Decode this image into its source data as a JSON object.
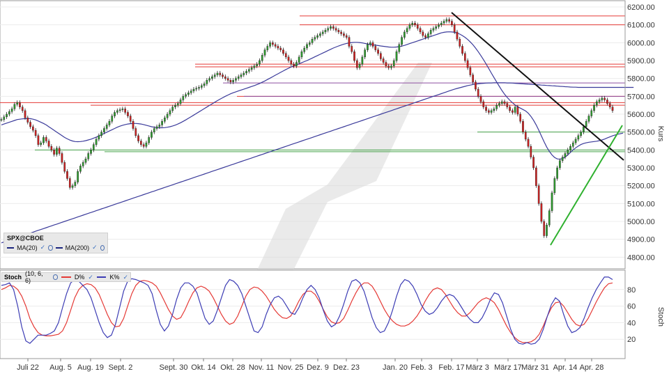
{
  "chart_data": [
    {
      "type": "candlestick",
      "symbol": "SPX@CBOE",
      "ylabel": "Kurs",
      "ylim": [
        4700,
        6200
      ],
      "y_ticks": [
        "6200.00",
        "6100.00",
        "6000.00",
        "5900.00",
        "5800.00",
        "5700.00",
        "5600.00",
        "5500.00",
        "5400.00",
        "5300.00",
        "5200.00",
        "5100.00",
        "5000.00",
        "4900.00",
        "4800.00"
      ],
      "x_labels": [
        "Juli 22",
        "Aug. 5",
        "Aug. 19",
        "Sept. 2",
        "Sept. 30",
        "Okt. 14",
        "Okt. 28",
        "Nov. 11",
        "Nov. 25",
        "Dez. 9",
        "Dez. 23",
        "Jan. 20",
        "Feb. 3",
        "Feb. 17",
        "März 3",
        "März 17",
        "März 31",
        "Apr. 14",
        "Apr. 28"
      ],
      "legend": [
        {
          "name": "MA(20)",
          "color": "#1a237e"
        },
        {
          "name": "MA(200)",
          "color": "#1a237e"
        }
      ],
      "colors": {
        "up": "#2e9e2e",
        "down": "#d12020",
        "ma": "#3a3a9a",
        "resistance": "#e53935",
        "support": "#43a047",
        "trend_down": "#111111",
        "trend_up": "#2fb12f",
        "purple": "#8e4fa0"
      },
      "grid": true,
      "horizontal_levels": {
        "red": [
          6150,
          6100,
          5880,
          5865,
          5700,
          5665,
          5650
        ],
        "purple": [
          5775,
          5700
        ],
        "green": [
          5500,
          5400,
          5390
        ]
      },
      "closes": [
        5570,
        5585,
        5600,
        5615,
        5630,
        5655,
        5665,
        5640,
        5620,
        5580,
        5555,
        5530,
        5510,
        5480,
        5430,
        5440,
        5470,
        5450,
        5420,
        5400,
        5375,
        5410,
        5380,
        5330,
        5280,
        5240,
        5190,
        5200,
        5220,
        5280,
        5310,
        5330,
        5350,
        5380,
        5400,
        5430,
        5460,
        5480,
        5500,
        5520,
        5540,
        5560,
        5590,
        5610,
        5620,
        5625,
        5630,
        5610,
        5590,
        5560,
        5520,
        5480,
        5450,
        5430,
        5420,
        5440,
        5470,
        5500,
        5520,
        5530,
        5540,
        5560,
        5580,
        5600,
        5620,
        5640,
        5650,
        5660,
        5680,
        5700,
        5710,
        5720,
        5730,
        5740,
        5745,
        5750,
        5760,
        5770,
        5790,
        5800,
        5810,
        5820,
        5830,
        5820,
        5810,
        5800,
        5790,
        5780,
        5790,
        5800,
        5810,
        5820,
        5830,
        5840,
        5850,
        5860,
        5870,
        5880,
        5900,
        5930,
        5960,
        5980,
        6000,
        5990,
        5980,
        5970,
        5960,
        5940,
        5920,
        5900,
        5880,
        5870,
        5890,
        5920,
        5950,
        5970,
        5990,
        6000,
        6020,
        6030,
        6040,
        6050,
        6060,
        6070,
        6080,
        6090,
        6080,
        6070,
        6060,
        6050,
        6040,
        6030,
        5980,
        5950,
        5900,
        5860,
        5880,
        5920,
        5960,
        5990,
        6000,
        5980,
        5960,
        5940,
        5910,
        5890,
        5870,
        5860,
        5870,
        5900,
        5950,
        5990,
        6030,
        6060,
        6080,
        6100,
        6110,
        6100,
        6080,
        6060,
        6040,
        6030,
        6050,
        6070,
        6080,
        6090,
        6100,
        6110,
        6120,
        6130,
        6120,
        6100,
        6060,
        6020,
        5980,
        5940,
        5900,
        5860,
        5820,
        5780,
        5740,
        5700,
        5670,
        5640,
        5620,
        5610,
        5620,
        5630,
        5650,
        5660,
        5670,
        5660,
        5640,
        5620,
        5610,
        5640,
        5600,
        5560,
        5500,
        5460,
        5420,
        5360,
        5300,
        5200,
        5100,
        5000,
        4920,
        4980,
        5060,
        5160,
        5240,
        5300,
        5340,
        5360,
        5380,
        5400,
        5420,
        5440,
        5460,
        5480,
        5500,
        5530,
        5560,
        5590,
        5620,
        5650,
        5670,
        5680,
        5690,
        5680,
        5660,
        5640,
        5620
      ],
      "ma20": [
        5540,
        5545,
        5550,
        5555,
        5560,
        5565,
        5570,
        5572,
        5574,
        5575,
        5576,
        5575,
        5572,
        5568,
        5562,
        5555,
        5548,
        5540,
        5530,
        5520,
        5510,
        5500,
        5490,
        5480,
        5470,
        5462,
        5455,
        5450,
        5447,
        5446,
        5447,
        5449,
        5452,
        5456,
        5460,
        5466,
        5472,
        5478,
        5485,
        5492,
        5499,
        5506,
        5513,
        5520,
        5527,
        5533,
        5538,
        5542,
        5545,
        5547,
        5548,
        5548,
        5547,
        5545,
        5542,
        5538,
        5534,
        5530,
        5527,
        5525,
        5524,
        5524,
        5525,
        5527,
        5530,
        5534,
        5539,
        5545,
        5552,
        5560,
        5568,
        5577,
        5586,
        5595,
        5604,
        5613,
        5622,
        5631,
        5640,
        5649,
        5658,
        5667,
        5676,
        5684,
        5692,
        5700,
        5707,
        5714,
        5720,
        5725,
        5730,
        5735,
        5740,
        5745,
        5750,
        5755,
        5760,
        5766,
        5772,
        5779,
        5786,
        5794,
        5802,
        5810,
        5818,
        5826,
        5834,
        5842,
        5850,
        5857,
        5864,
        5870,
        5876,
        5882,
        5888,
        5894,
        5900,
        5907,
        5914,
        5921,
        5928,
        5935,
        5942,
        5949,
        5956,
        5963,
        5970,
        5976,
        5982,
        5987,
        5992,
        5996,
        5999,
        6001,
        6002,
        6002,
        6001,
        5999,
        5996,
        5993,
        5990,
        5988,
        5986,
        5984,
        5982,
        5980,
        5978,
        5976,
        5975,
        5975,
        5976,
        5978,
        5981,
        5985,
        5990,
        5995,
        6000,
        6005,
        6010,
        6015,
        6020,
        6025,
        6030,
        6035,
        6040,
        6045,
        6050,
        6055,
        6058,
        6060,
        6061,
        6060,
        6058,
        6054,
        6048,
        6040,
        6030,
        6018,
        6004,
        5988,
        5970,
        5950,
        5928,
        5905,
        5881,
        5856,
        5830,
        5805,
        5780,
        5756,
        5733,
        5712,
        5694,
        5678,
        5664,
        5652,
        5642,
        5634,
        5626,
        5618,
        5606,
        5588,
        5566,
        5540,
        5510,
        5478,
        5446,
        5416,
        5392,
        5372,
        5358,
        5350,
        5348,
        5352,
        5360,
        5372,
        5386,
        5400,
        5412,
        5422,
        5430,
        5436,
        5440,
        5443,
        5445,
        5447,
        5449,
        5452,
        5456,
        5461,
        5467,
        5473,
        5479,
        5484,
        5488,
        5491,
        5494
      ],
      "ma200": [
        4880,
        4885,
        4890,
        4895,
        4900,
        4905,
        4910,
        4915,
        4920,
        4925,
        4930,
        4935,
        4940,
        4945,
        4950,
        4955,
        4960,
        4965,
        4970,
        4975,
        4980,
        4985,
        4990,
        4995,
        5000,
        5005,
        5010,
        5015,
        5020,
        5025,
        5030,
        5035,
        5040,
        5045,
        5050,
        5055,
        5060,
        5065,
        5070,
        5075,
        5080,
        5085,
        5090,
        5095,
        5100,
        5105,
        5110,
        5115,
        5120,
        5125,
        5130,
        5135,
        5140,
        5145,
        5150,
        5155,
        5160,
        5165,
        5170,
        5175,
        5180,
        5185,
        5190,
        5195,
        5200,
        5205,
        5210,
        5215,
        5220,
        5225,
        5230,
        5235,
        5240,
        5245,
        5250,
        5255,
        5260,
        5265,
        5270,
        5275,
        5280,
        5285,
        5290,
        5295,
        5300,
        5305,
        5310,
        5315,
        5320,
        5325,
        5330,
        5335,
        5340,
        5345,
        5350,
        5355,
        5360,
        5365,
        5370,
        5375,
        5380,
        5385,
        5390,
        5395,
        5400,
        5405,
        5410,
        5415,
        5420,
        5425,
        5430,
        5435,
        5440,
        5445,
        5450,
        5455,
        5460,
        5465,
        5470,
        5475,
        5480,
        5485,
        5490,
        5495,
        5500,
        5505,
        5510,
        5515,
        5520,
        5525,
        5530,
        5535,
        5540,
        5545,
        5550,
        5555,
        5560,
        5565,
        5570,
        5575,
        5580,
        5585,
        5590,
        5595,
        5600,
        5605,
        5610,
        5615,
        5620,
        5625,
        5630,
        5635,
        5640,
        5645,
        5650,
        5655,
        5660,
        5665,
        5670,
        5675,
        5680,
        5685,
        5690,
        5695,
        5700,
        5705,
        5710,
        5715,
        5720,
        5725,
        5730,
        5735,
        5740,
        5744,
        5748,
        5752,
        5756,
        5760,
        5763,
        5766,
        5768,
        5770,
        5772,
        5773,
        5774,
        5775,
        5775,
        5776,
        5776,
        5776,
        5776,
        5776,
        5775,
        5775,
        5774,
        5773,
        5772,
        5771,
        5770,
        5769,
        5768,
        5767,
        5766,
        5765,
        5764,
        5763,
        5762,
        5761,
        5760,
        5759,
        5758,
        5757,
        5756,
        5755,
        5754,
        5753,
        5752,
        5751,
        5751,
        5750,
        5750,
        5750,
        5750,
        5750,
        5750,
        5750,
        5750,
        5750,
        5750,
        5750,
        5750,
        5750,
        5750,
        5750,
        5750,
        5750,
        5750,
        5750,
        5750,
        5750,
        5750
      ]
    },
    {
      "type": "line",
      "indicator": "Stoch",
      "params": "(10, 6, 6)",
      "ylabel": "Stoch",
      "ylim": [
        0,
        100
      ],
      "y_ticks": [
        "80",
        "60",
        "40",
        "20"
      ],
      "series": [
        {
          "name": "D%",
          "color": "#e53935",
          "values": [
            80,
            82,
            85,
            84,
            80,
            72,
            60,
            45,
            35,
            28,
            25,
            24,
            24,
            25,
            26,
            30,
            40,
            55,
            70,
            80,
            85,
            87,
            86,
            82,
            74,
            62,
            50,
            40,
            35,
            36,
            45,
            60,
            75,
            85,
            90,
            91,
            90,
            88,
            84,
            76,
            66,
            56,
            48,
            44,
            46,
            55,
            66,
            76,
            82,
            84,
            82,
            78,
            70,
            60,
            50,
            42,
            38,
            40,
            48,
            60,
            72,
            80,
            83,
            82,
            78,
            72,
            64,
            56,
            50,
            46,
            45,
            48,
            56,
            66,
            74,
            78,
            78,
            74,
            66,
            56,
            47,
            41,
            39,
            40,
            45,
            55,
            66,
            76,
            84,
            88,
            88,
            84,
            76,
            66,
            56,
            48,
            42,
            38,
            36,
            36,
            38,
            42,
            48,
            56,
            66,
            74,
            80,
            82,
            80,
            74,
            66,
            58,
            52,
            48,
            48,
            52,
            58,
            64,
            68,
            70,
            68,
            64,
            56,
            46,
            36,
            28,
            22,
            18,
            16,
            16,
            17,
            20,
            26,
            36,
            48,
            58,
            64,
            65,
            60,
            52,
            44,
            38,
            36,
            38,
            45,
            55,
            65,
            74,
            82,
            87,
            88
          ]
        },
        {
          "name": "K%",
          "color": "#3c3cb4",
          "values": [
            85,
            86,
            88,
            80,
            60,
            35,
            18,
            15,
            20,
            25,
            25,
            25,
            27,
            30,
            40,
            58,
            75,
            88,
            92,
            90,
            85,
            80,
            70,
            55,
            40,
            28,
            22,
            25,
            38,
            58,
            78,
            90,
            93,
            92,
            90,
            88,
            85,
            75,
            55,
            38,
            30,
            36,
            50,
            68,
            82,
            88,
            88,
            84,
            76,
            60,
            45,
            38,
            42,
            55,
            70,
            85,
            92,
            90,
            85,
            75,
            60,
            45,
            30,
            28,
            35,
            50,
            62,
            70,
            72,
            68,
            60,
            52,
            50,
            58,
            70,
            80,
            85,
            80,
            70,
            55,
            42,
            35,
            38,
            48,
            62,
            78,
            90,
            92,
            88,
            78,
            62,
            46,
            34,
            28,
            30,
            40,
            55,
            72,
            86,
            92,
            90,
            84,
            74,
            62,
            54,
            50,
            52,
            58,
            66,
            72,
            74,
            72,
            66,
            58,
            50,
            44,
            40,
            40,
            46,
            56,
            68,
            76,
            74,
            64,
            48,
            32,
            20,
            15,
            14,
            16,
            14,
            15,
            20,
            32,
            48,
            62,
            70,
            66,
            50,
            36,
            28,
            30,
            34,
            45,
            58,
            70,
            80,
            88,
            95,
            95,
            92
          ]
        }
      ]
    }
  ],
  "legend_text": {
    "symbol": "SPX@CBOE",
    "ma20": "MA(20)",
    "ma200": "MA(200)",
    "stoch": "Stoch",
    "stoch_params": "(10, 6, 6)",
    "d": "D%",
    "k": "K%"
  }
}
